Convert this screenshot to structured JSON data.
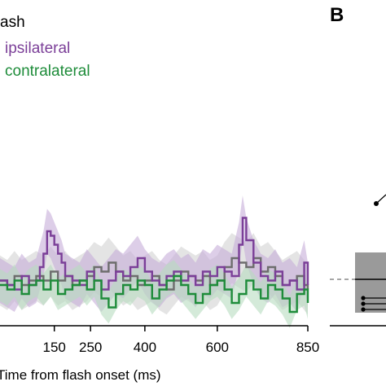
{
  "panel_label": "B",
  "chart_data": {
    "type": "line",
    "title": "",
    "xlabel": "Time from flash onset (ms)",
    "ylabel": "",
    "xlim": [
      0,
      850
    ],
    "x_ticks": [
      150,
      250,
      400,
      600,
      850
    ],
    "grid": false,
    "legend": {
      "placement": "top-left",
      "header": "ash"
    },
    "series": [
      {
        "name": "ipsilateral",
        "color": "#7b3f98",
        "band_color": "#c6aed9",
        "x": [
          0,
          20,
          40,
          60,
          80,
          100,
          110,
          120,
          130,
          140,
          150,
          160,
          170,
          180,
          200,
          220,
          240,
          260,
          280,
          300,
          320,
          340,
          360,
          380,
          400,
          420,
          440,
          460,
          480,
          500,
          520,
          540,
          560,
          580,
          600,
          620,
          640,
          660,
          670,
          680,
          700,
          720,
          740,
          760,
          780,
          800,
          820,
          840,
          850
        ],
        "y": [
          0.05,
          0.0,
          -0.05,
          0.1,
          0.0,
          0.05,
          0.2,
          0.35,
          0.6,
          0.55,
          0.45,
          0.35,
          0.25,
          0.1,
          0.05,
          0.0,
          0.15,
          0.05,
          -0.05,
          0.05,
          0.15,
          0.1,
          0.2,
          0.3,
          0.15,
          0.05,
          0.0,
          0.1,
          0.15,
          0.05,
          0.1,
          0.0,
          0.15,
          0.1,
          0.2,
          0.15,
          0.1,
          0.45,
          0.75,
          0.5,
          0.25,
          0.1,
          0.05,
          0.15,
          0.0,
          0.05,
          -0.05,
          0.25,
          0.0
        ],
        "band_halfwidth": 0.25
      },
      {
        "name": "contralateral",
        "color": "#1e8c3a",
        "band_color": "#b8dcc0",
        "x": [
          0,
          20,
          40,
          60,
          80,
          100,
          120,
          140,
          160,
          180,
          200,
          220,
          240,
          260,
          280,
          300,
          320,
          340,
          360,
          380,
          400,
          420,
          440,
          460,
          480,
          500,
          520,
          540,
          560,
          580,
          600,
          620,
          640,
          660,
          680,
          700,
          720,
          740,
          760,
          780,
          800,
          820,
          840,
          850
        ],
        "y": [
          0.0,
          -0.05,
          0.05,
          -0.1,
          0.0,
          0.05,
          -0.05,
          0.05,
          -0.1,
          -0.05,
          0.0,
          0.05,
          -0.05,
          0.05,
          -0.15,
          -0.25,
          -0.1,
          0.0,
          -0.05,
          0.05,
          0.0,
          -0.15,
          -0.05,
          0.05,
          0.1,
          0.0,
          -0.1,
          -0.2,
          -0.1,
          0.0,
          0.05,
          -0.05,
          -0.2,
          -0.1,
          0.05,
          -0.05,
          -0.15,
          0.0,
          -0.05,
          -0.15,
          -0.3,
          -0.1,
          -0.05,
          -0.2
        ],
        "band_halfwidth": 0.18
      },
      {
        "name": "",
        "color": "#6d6d6d",
        "band_color": "#d2d2d2",
        "x": [
          0,
          20,
          40,
          60,
          80,
          100,
          120,
          140,
          160,
          180,
          200,
          220,
          240,
          260,
          280,
          300,
          320,
          340,
          360,
          380,
          400,
          420,
          440,
          460,
          480,
          500,
          520,
          540,
          560,
          580,
          600,
          620,
          640,
          660,
          680,
          700,
          720,
          740,
          760,
          780,
          800,
          820,
          840,
          850
        ],
        "y": [
          0.05,
          0.0,
          0.1,
          0.0,
          0.05,
          0.1,
          0.05,
          0.15,
          0.05,
          0.1,
          0.0,
          0.05,
          0.1,
          0.2,
          0.15,
          0.25,
          0.15,
          0.05,
          0.1,
          0.0,
          0.05,
          0.1,
          0.0,
          -0.05,
          0.05,
          0.15,
          0.1,
          0.05,
          0.1,
          0.0,
          0.05,
          0.2,
          0.3,
          0.25,
          0.2,
          0.3,
          0.15,
          0.2,
          0.1,
          0.0,
          0.05,
          0.1,
          0.0,
          -0.05
        ],
        "band_halfwidth": 0.28
      }
    ]
  }
}
